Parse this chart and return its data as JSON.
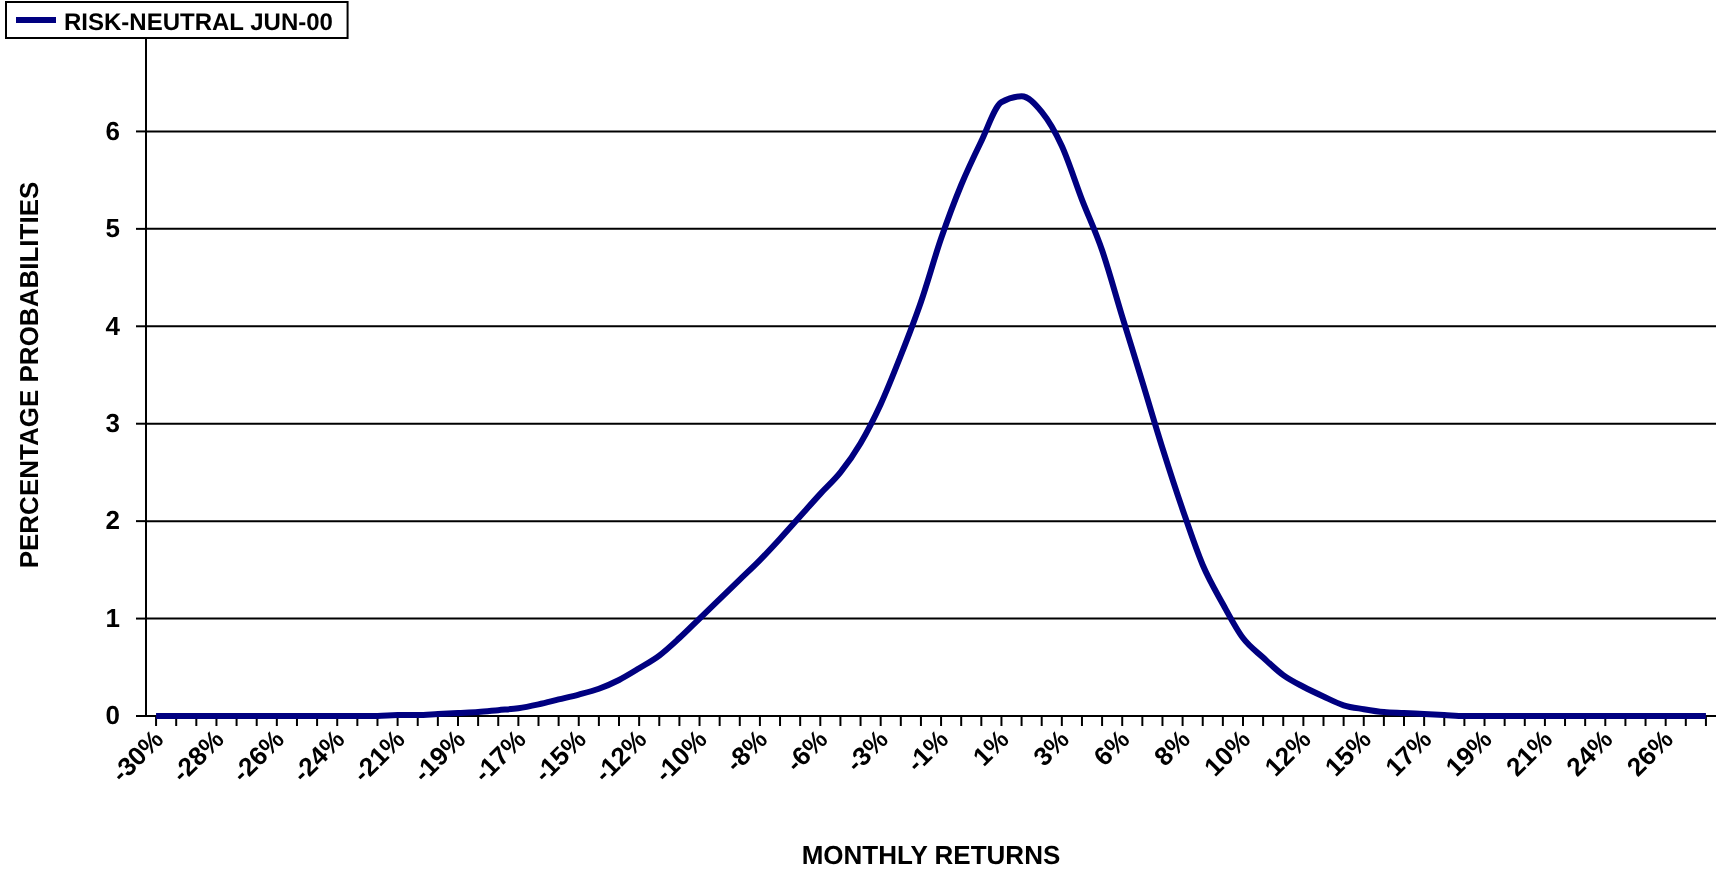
{
  "chart_data": {
    "type": "line",
    "xlabel": "MONTHLY RETURNS",
    "ylabel": "PERCENTAGE PROBABILITIES",
    "categories": [
      "-30%",
      null,
      null,
      "-28%",
      null,
      null,
      "-26%",
      null,
      null,
      "-24%",
      null,
      null,
      "-21%",
      null,
      null,
      "-19%",
      null,
      null,
      "-17%",
      null,
      null,
      "-15%",
      null,
      null,
      "-12%",
      null,
      null,
      "-10%",
      null,
      null,
      "-8%",
      null,
      null,
      "-6%",
      null,
      null,
      "-3%",
      null,
      null,
      "-1%",
      null,
      null,
      "1%",
      null,
      null,
      "3%",
      null,
      null,
      "6%",
      null,
      null,
      "8%",
      null,
      null,
      "10%",
      null,
      null,
      "12%",
      null,
      null,
      "15%",
      null,
      null,
      "17%",
      null,
      null,
      "19%",
      null,
      null,
      "21%",
      null,
      null,
      "24%",
      null,
      null,
      "26%",
      null,
      null
    ],
    "series": [
      {
        "name": "RISK-NEUTRAL JUN-00",
        "color": "#000080",
        "values": [
          0,
          0,
          0,
          0,
          0,
          0,
          0,
          0,
          0,
          0,
          0,
          0,
          0.01,
          0.01,
          0.02,
          0.03,
          0.04,
          0.06,
          0.08,
          0.12,
          0.17,
          0.22,
          0.28,
          0.37,
          0.49,
          0.62,
          0.8,
          1.0,
          1.2,
          1.4,
          1.6,
          1.82,
          2.05,
          2.28,
          2.5,
          2.8,
          3.2,
          3.7,
          4.25,
          4.9,
          5.45,
          5.9,
          6.3,
          6.36,
          6.2,
          5.85,
          5.3,
          4.78,
          4.1,
          3.43,
          2.75,
          2.12,
          1.55,
          1.15,
          0.8,
          0.6,
          0.42,
          0.3,
          0.2,
          0.11,
          0.07,
          0.04,
          0.03,
          0.02,
          0.01,
          0,
          0,
          0,
          0,
          0,
          0,
          0,
          0,
          0,
          0,
          0,
          0,
          0
        ]
      }
    ],
    "ylim": [
      0,
      7
    ],
    "yticks": [
      0,
      1,
      2,
      3,
      4,
      5,
      6
    ],
    "grid": "y",
    "legend": "top left",
    "marker": "none",
    "line_style": "solid"
  }
}
